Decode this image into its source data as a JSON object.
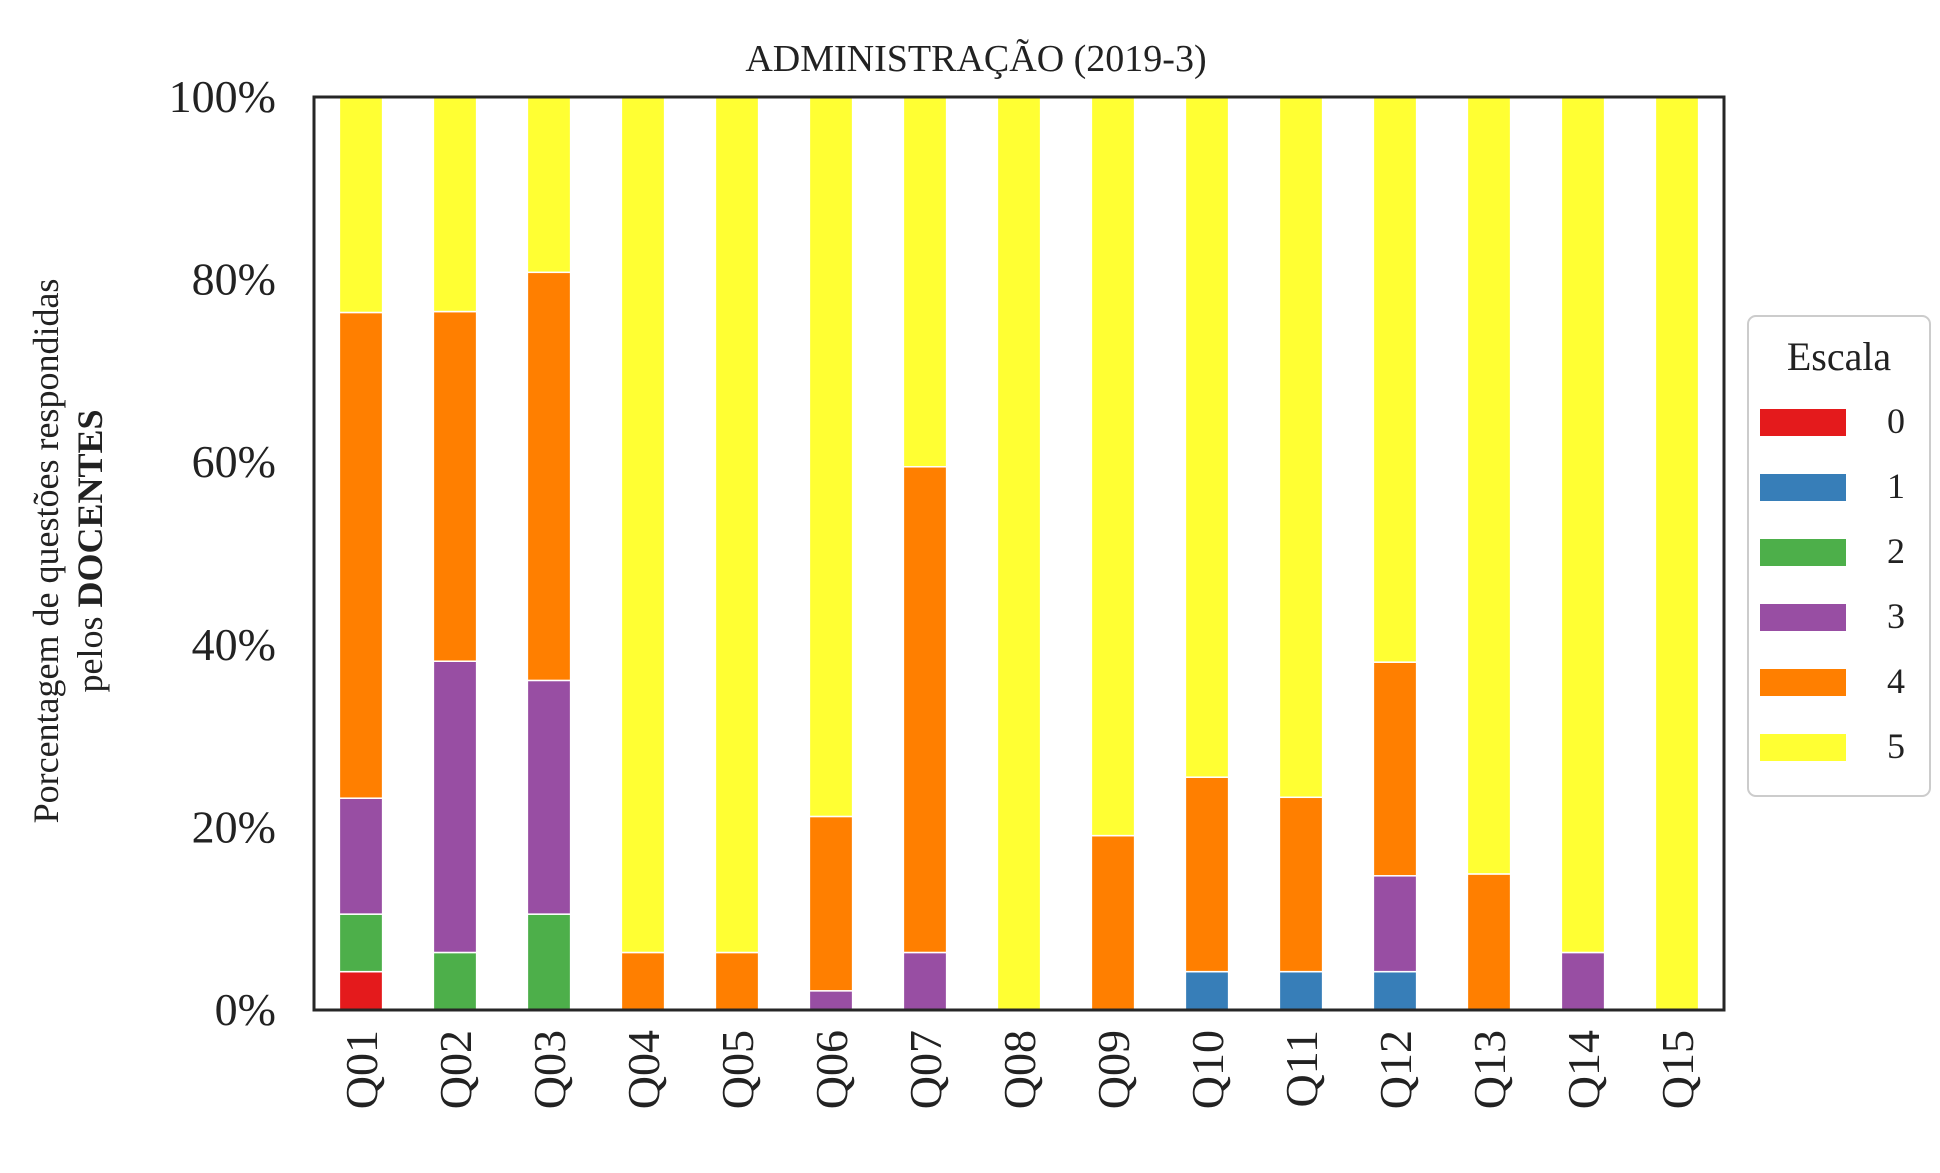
{
  "chart_data": {
    "type": "bar",
    "stacked": true,
    "title": "ADMINISTRAÇÃO (2019-3)",
    "ylabel_line1": "Porcentagem de questões respondidas",
    "ylabel_line2_prefix": "pelos ",
    "ylabel_line2_bold": "DOCENTES",
    "xlabel": "",
    "ylim": [
      0,
      100
    ],
    "yticks": [
      0,
      20,
      40,
      60,
      80,
      100
    ],
    "ytick_labels": [
      "0%",
      "20%",
      "40%",
      "60%",
      "80%",
      "100%"
    ],
    "grid": false,
    "categories": [
      "Q01",
      "Q02",
      "Q03",
      "Q04",
      "Q05",
      "Q06",
      "Q07",
      "Q08",
      "Q09",
      "Q10",
      "Q11",
      "Q12",
      "Q13",
      "Q14",
      "Q15"
    ],
    "legend_title": "Escala",
    "legend_position": "center-right",
    "series": [
      {
        "name": "0",
        "color": "#e41a1c",
        "values": [
          4.2,
          0,
          0,
          0,
          0,
          0,
          0,
          0,
          0,
          0,
          0,
          0,
          0,
          0,
          0
        ]
      },
      {
        "name": "1",
        "color": "#377eb8",
        "values": [
          0,
          0,
          0,
          0,
          0,
          0,
          0,
          0,
          0,
          4.2,
          4.2,
          4.2,
          0,
          0,
          0
        ]
      },
      {
        "name": "2",
        "color": "#4daf4a",
        "values": [
          6.3,
          6.3,
          10.5,
          0,
          0,
          0,
          0,
          0,
          0,
          0,
          0,
          0,
          0,
          0,
          0
        ]
      },
      {
        "name": "3",
        "color": "#984ea3",
        "values": [
          12.7,
          31.9,
          25.6,
          0,
          0,
          2.1,
          6.3,
          0,
          0,
          0,
          0,
          10.5,
          0,
          6.3,
          0
        ]
      },
      {
        "name": "4",
        "color": "#ff7f00",
        "values": [
          53.2,
          38.3,
          44.7,
          6.3,
          6.3,
          19.1,
          53.2,
          0,
          19.1,
          21.3,
          19.1,
          23.4,
          14.9,
          0,
          0
        ]
      },
      {
        "name": "5",
        "color": "#ffff33",
        "values": [
          23.6,
          23.5,
          19.2,
          93.7,
          93.7,
          78.8,
          40.5,
          100,
          80.9,
          74.5,
          76.7,
          61.9,
          85.1,
          93.7,
          100
        ]
      }
    ]
  }
}
